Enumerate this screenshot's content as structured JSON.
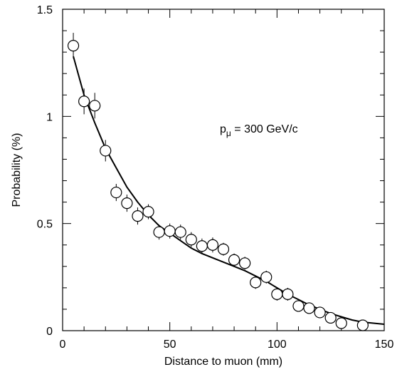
{
  "chart_data": {
    "type": "scatter",
    "title": "",
    "xlabel": "Distance to muon (mm)",
    "ylabel": "Probability (%)",
    "xlim": [
      0,
      150
    ],
    "ylim": [
      0,
      1.5
    ],
    "x_ticks": [
      "0",
      "50",
      "100",
      "150"
    ],
    "y_ticks": [
      "0",
      "0.5",
      "1",
      "1.5"
    ],
    "grid": false,
    "annotation": {
      "base": "p",
      "subscript": "μ",
      "text": " = 300 GeV/c"
    },
    "points": [
      {
        "x": 5,
        "y": 1.33,
        "err": 0.06
      },
      {
        "x": 10,
        "y": 1.07,
        "err": 0.06
      },
      {
        "x": 15,
        "y": 1.05,
        "err": 0.06
      },
      {
        "x": 20,
        "y": 0.84,
        "err": 0.05
      },
      {
        "x": 25,
        "y": 0.645,
        "err": 0.04
      },
      {
        "x": 30,
        "y": 0.595,
        "err": 0.04
      },
      {
        "x": 35,
        "y": 0.535,
        "err": 0.04
      },
      {
        "x": 40,
        "y": 0.555,
        "err": 0.035
      },
      {
        "x": 45,
        "y": 0.46,
        "err": 0.035
      },
      {
        "x": 50,
        "y": 0.465,
        "err": 0.035
      },
      {
        "x": 55,
        "y": 0.46,
        "err": 0.035
      },
      {
        "x": 60,
        "y": 0.425,
        "err": 0.035
      },
      {
        "x": 65,
        "y": 0.395,
        "err": 0.035
      },
      {
        "x": 70,
        "y": 0.4,
        "err": 0.035
      },
      {
        "x": 75,
        "y": 0.38,
        "err": 0.03
      },
      {
        "x": 80,
        "y": 0.33,
        "err": 0.03
      },
      {
        "x": 85,
        "y": 0.315,
        "err": 0.03
      },
      {
        "x": 90,
        "y": 0.225,
        "err": 0.03
      },
      {
        "x": 95,
        "y": 0.25,
        "err": 0.03
      },
      {
        "x": 100,
        "y": 0.17,
        "err": 0.03
      },
      {
        "x": 105,
        "y": 0.17,
        "err": 0.03
      },
      {
        "x": 110,
        "y": 0.115,
        "err": 0.025
      },
      {
        "x": 115,
        "y": 0.105,
        "err": 0.025
      },
      {
        "x": 120,
        "y": 0.085,
        "err": 0.025
      },
      {
        "x": 125,
        "y": 0.06,
        "err": 0.025
      },
      {
        "x": 130,
        "y": 0.035,
        "err": 0.025
      },
      {
        "x": 140,
        "y": 0.025,
        "err": 0.02
      }
    ],
    "fit_curve": {
      "x": [
        5,
        10,
        15,
        20,
        25,
        30,
        35,
        40,
        45,
        50,
        55,
        60,
        65,
        70,
        75,
        80,
        85,
        90,
        95,
        100,
        105,
        110,
        115,
        120,
        125,
        130,
        135,
        140,
        145,
        150
      ],
      "y": [
        1.28,
        1.1,
        0.97,
        0.85,
        0.76,
        0.67,
        0.6,
        0.54,
        0.49,
        0.455,
        0.42,
        0.385,
        0.36,
        0.34,
        0.32,
        0.3,
        0.28,
        0.255,
        0.23,
        0.2,
        0.17,
        0.145,
        0.12,
        0.1,
        0.08,
        0.065,
        0.05,
        0.04,
        0.035,
        0.03
      ]
    }
  }
}
